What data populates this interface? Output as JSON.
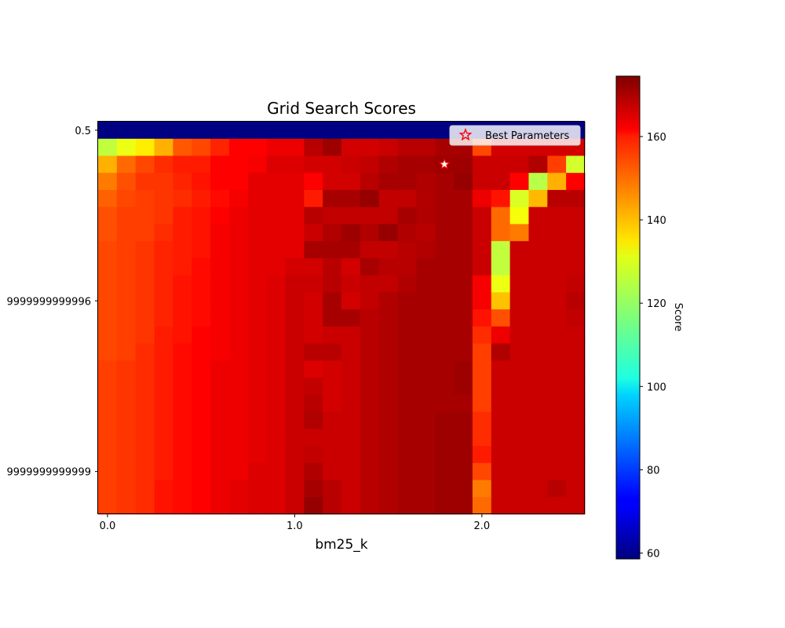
{
  "chart_data": {
    "type": "heatmap",
    "title": "Grid Search Scores",
    "xlabel": "bm25_k",
    "ylabel": "",
    "x_tick_labels": [
      "0.0",
      "1.0",
      "2.0"
    ],
    "y_tick_labels": [
      "0.5",
      "9999999999996",
      "9999999999999"
    ],
    "colorbar": {
      "label": "Score",
      "range": [
        58.6,
        174.5
      ],
      "ticks": [
        "60",
        "80",
        "100",
        "120",
        "140",
        "160"
      ],
      "colormap": "jet"
    },
    "legend": {
      "label": "Best Parameters",
      "placement": "top-right"
    },
    "best": {
      "col": 18,
      "row": 2,
      "x": 1.8
    },
    "x_values": [
      0.0,
      0.1,
      0.2,
      0.3,
      0.4,
      0.5,
      0.6,
      0.7,
      0.8,
      0.9,
      1.0,
      1.1,
      1.2,
      1.3,
      1.4,
      1.5,
      1.6,
      1.7,
      1.8,
      1.9,
      2.0,
      2.1,
      2.2,
      2.3,
      2.4,
      2.5
    ],
    "z": [
      [
        59,
        59,
        59,
        59,
        59,
        59,
        59,
        59,
        59,
        59,
        59,
        59,
        59,
        59,
        59,
        59,
        59,
        59,
        59,
        59,
        59,
        59,
        59,
        59,
        59,
        59
      ],
      [
        124,
        129,
        133,
        140,
        150,
        152,
        156,
        160,
        160,
        162,
        162,
        168,
        171,
        165,
        165,
        166,
        168,
        168,
        170,
        170,
        152,
        165,
        165,
        165,
        165,
        165
      ],
      [
        140,
        148,
        152,
        155,
        157,
        157,
        160,
        160,
        161,
        164,
        164,
        165,
        165,
        166,
        167,
        169,
        170,
        170,
        171,
        171,
        166,
        166,
        166,
        169,
        153,
        126
      ],
      [
        146,
        151,
        154,
        154,
        156,
        158,
        160,
        160,
        163,
        163,
        163,
        160,
        165,
        165,
        168,
        170,
        170,
        169,
        170,
        172,
        166,
        166,
        160,
        123,
        140,
        160
      ],
      [
        149,
        152,
        153,
        154,
        155,
        157,
        159,
        161,
        163,
        163,
        163,
        157,
        170,
        170,
        172,
        167,
        167,
        169,
        170,
        170,
        162,
        158,
        127,
        139,
        168,
        168
      ],
      [
        151,
        153,
        153,
        154,
        157,
        158,
        160,
        162,
        163,
        163,
        163,
        168,
        167,
        167,
        167,
        167,
        170,
        169,
        170,
        170,
        166,
        148,
        130,
        166,
        166,
        166
      ],
      [
        151,
        153,
        153,
        155,
        157,
        158,
        161,
        162,
        163,
        163,
        163,
        166,
        169,
        171,
        169,
        172,
        169,
        168,
        170,
        170,
        166,
        148,
        146,
        166,
        166,
        166
      ],
      [
        152,
        153,
        154,
        156,
        157,
        158,
        161,
        162,
        163,
        163,
        163,
        170,
        170,
        170,
        167,
        167,
        168,
        169,
        170,
        170,
        166,
        124,
        166,
        166,
        166,
        166
      ],
      [
        152,
        153,
        154,
        156,
        157,
        159,
        161,
        162,
        163,
        163,
        165,
        165,
        168,
        165,
        170,
        168,
        168,
        170,
        170,
        170,
        166,
        124,
        166,
        166,
        166,
        166
      ],
      [
        152,
        153,
        154,
        156,
        158,
        159,
        161,
        162,
        163,
        164,
        166,
        166,
        168,
        166,
        167,
        167,
        169,
        170,
        170,
        170,
        161,
        129,
        166,
        166,
        166,
        167
      ],
      [
        152,
        153,
        154,
        156,
        158,
        159,
        161,
        162,
        163,
        164,
        166,
        165,
        170,
        165,
        167,
        169,
        170,
        170,
        170,
        170,
        161,
        138,
        166,
        166,
        166,
        168
      ],
      [
        152,
        153,
        154,
        156,
        158,
        159,
        161,
        162,
        163,
        164,
        166,
        165,
        170,
        170,
        168,
        169,
        170,
        170,
        170,
        170,
        158,
        151,
        166,
        166,
        166,
        167
      ],
      [
        152,
        153,
        154,
        157,
        158,
        160,
        161,
        162,
        163,
        164,
        166,
        165,
        166,
        166,
        168,
        169,
        170,
        170,
        170,
        170,
        155,
        162,
        166,
        166,
        166,
        166
      ],
      [
        152,
        153,
        155,
        157,
        159,
        160,
        161,
        162,
        163,
        164,
        166,
        168,
        168,
        166,
        168,
        169,
        170,
        170,
        170,
        170,
        153,
        169,
        166,
        166,
        166,
        166
      ],
      [
        153,
        154,
        155,
        157,
        159,
        160,
        162,
        162,
        163,
        164,
        166,
        164,
        165,
        166,
        168,
        169,
        170,
        170,
        170,
        171,
        153,
        166,
        166,
        166,
        166,
        166
      ],
      [
        153,
        154,
        155,
        157,
        159,
        160,
        162,
        162,
        163,
        164,
        166,
        167,
        165,
        166,
        168,
        169,
        170,
        170,
        170,
        171,
        153,
        166,
        166,
        166,
        166,
        166
      ],
      [
        153,
        154,
        155,
        157,
        159,
        160,
        162,
        162,
        163,
        164,
        166,
        168,
        165,
        166,
        168,
        169,
        170,
        170,
        170,
        170,
        153,
        166,
        166,
        166,
        166,
        166
      ],
      [
        153,
        154,
        155,
        157,
        159,
        160,
        162,
        162,
        163,
        164,
        166,
        169,
        166,
        166,
        168,
        169,
        170,
        170,
        171,
        171,
        155,
        166,
        166,
        166,
        166,
        166
      ],
      [
        153,
        154,
        155,
        157,
        159,
        160,
        162,
        162,
        163,
        164,
        166,
        166,
        166,
        166,
        168,
        169,
        170,
        170,
        171,
        171,
        155,
        166,
        166,
        166,
        166,
        166
      ],
      [
        153,
        154,
        155,
        157,
        159,
        160,
        162,
        162,
        163,
        164,
        166,
        167,
        166,
        166,
        168,
        169,
        170,
        170,
        171,
        171,
        157,
        166,
        166,
        166,
        166,
        166
      ],
      [
        153,
        154,
        155,
        157,
        159,
        160,
        162,
        162,
        164,
        164,
        166,
        169,
        166,
        166,
        168,
        169,
        170,
        170,
        171,
        171,
        152,
        166,
        166,
        166,
        166,
        166
      ],
      [
        153,
        154,
        155,
        158,
        159,
        160,
        162,
        163,
        164,
        164,
        166,
        170,
        168,
        166,
        168,
        169,
        170,
        170,
        171,
        171,
        146,
        166,
        166,
        166,
        168,
        166
      ],
      [
        153,
        154,
        155,
        158,
        159,
        160,
        162,
        163,
        164,
        164,
        166,
        172,
        168,
        166,
        168,
        169,
        170,
        170,
        171,
        171,
        148,
        166,
        166,
        166,
        166,
        166
      ]
    ]
  }
}
